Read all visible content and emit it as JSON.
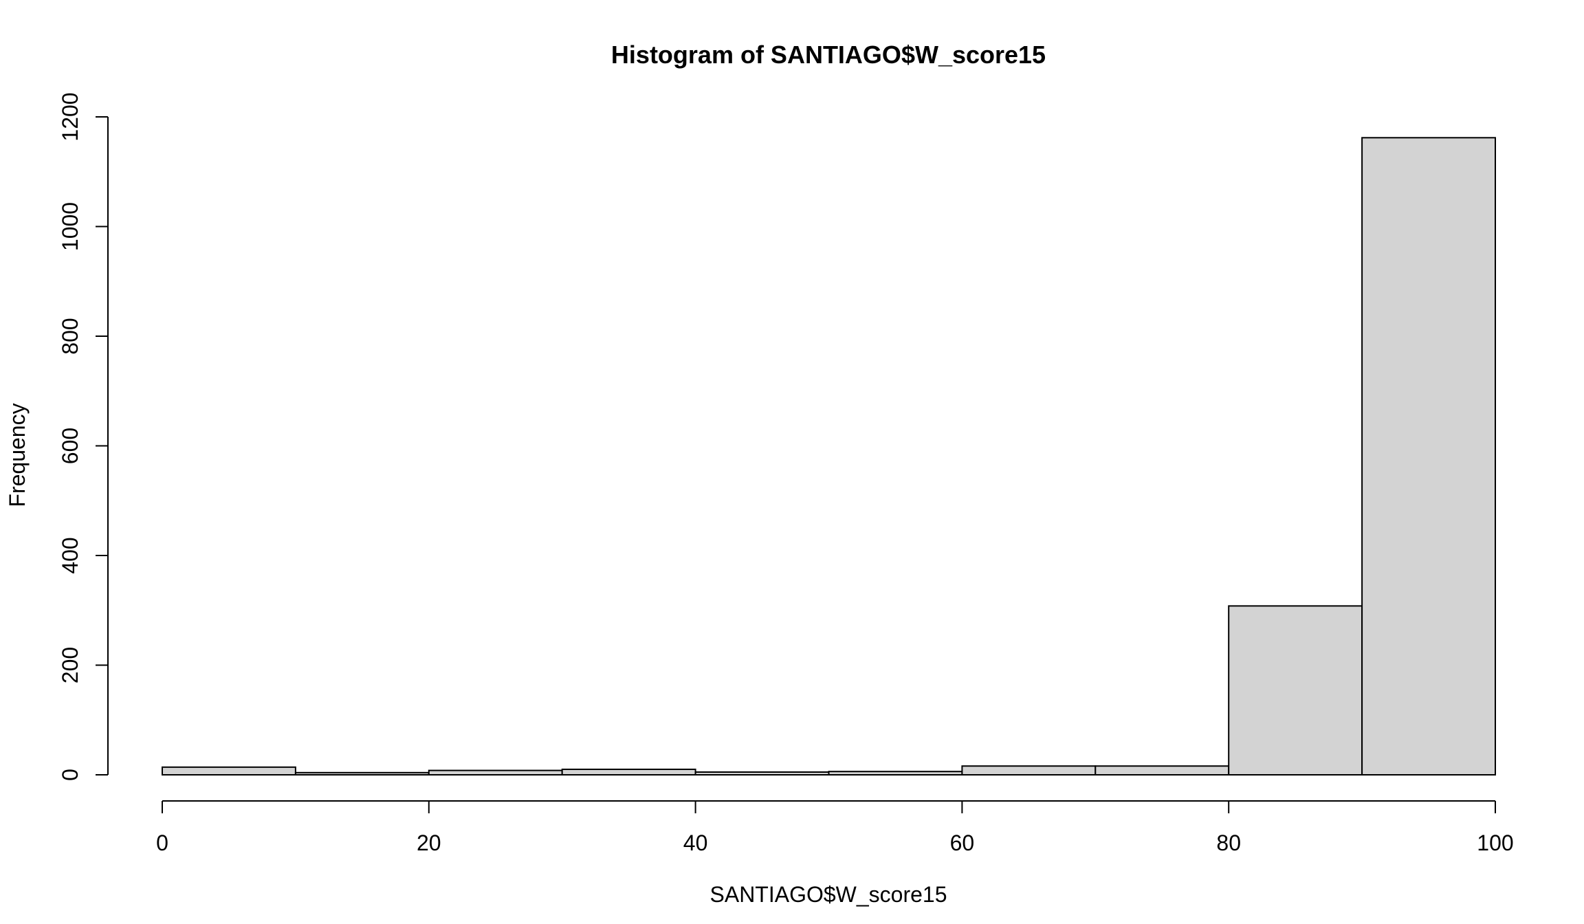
{
  "chart_data": {
    "type": "bar",
    "title": "Histogram of SANTIAGO$W_score15",
    "xlabel": "SANTIAGO$W_score15",
    "ylabel": "Frequency",
    "bins": [
      {
        "x0": 0,
        "x1": 10,
        "count": 14
      },
      {
        "x0": 10,
        "x1": 20,
        "count": 4
      },
      {
        "x0": 20,
        "x1": 30,
        "count": 8
      },
      {
        "x0": 30,
        "x1": 40,
        "count": 10
      },
      {
        "x0": 40,
        "x1": 50,
        "count": 5
      },
      {
        "x0": 50,
        "x1": 60,
        "count": 6
      },
      {
        "x0": 60,
        "x1": 70,
        "count": 16
      },
      {
        "x0": 70,
        "x1": 80,
        "count": 16
      },
      {
        "x0": 80,
        "x1": 90,
        "count": 308
      },
      {
        "x0": 90,
        "x1": 100,
        "count": 1162
      }
    ],
    "xlim": [
      0,
      100
    ],
    "ylim": [
      0,
      1200
    ],
    "x_ticks": [
      "0",
      "20",
      "40",
      "60",
      "80",
      "100"
    ],
    "y_ticks": [
      "0",
      "200",
      "400",
      "600",
      "800",
      "1000",
      "1200"
    ],
    "bar_fill": "#d3d3d3",
    "bar_stroke": "#000000",
    "grid": false,
    "legend": "none"
  }
}
